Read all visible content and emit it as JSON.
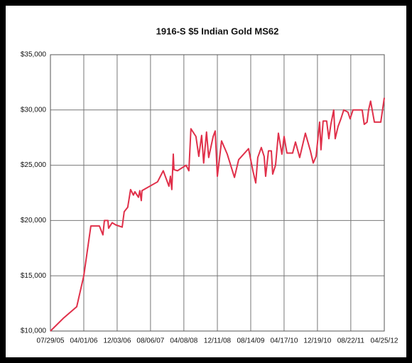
{
  "chart_data": {
    "type": "line",
    "title": "1916-S $5 Indian Gold MS62",
    "x": [
      "2005-07-29",
      "2005-11-05",
      "2006-02-08",
      "2006-04-01",
      "2006-05-23",
      "2006-07-25",
      "2006-08-20",
      "2006-08-31",
      "2006-09-26",
      "2006-10-01",
      "2006-10-27",
      "2006-11-23",
      "2007-01-09",
      "2007-01-24",
      "2007-02-19",
      "2007-03-12",
      "2007-04-02",
      "2007-04-13",
      "2007-05-09",
      "2007-05-19",
      "2007-05-30",
      "2007-06-04",
      "2007-09-27",
      "2007-11-08",
      "2007-12-20",
      "2007-12-31",
      "2008-01-10",
      "2008-01-21",
      "2008-01-26",
      "2008-02-21",
      "2008-04-24",
      "2008-05-15",
      "2008-05-30",
      "2008-07-06",
      "2008-07-27",
      "2008-08-17",
      "2008-09-01",
      "2008-09-22",
      "2008-10-08",
      "2008-11-10",
      "2008-11-25",
      "2008-12-11",
      "2009-01-11",
      "2009-02-22",
      "2009-04-16",
      "2009-05-17",
      "2009-07-29",
      "2009-08-30",
      "2009-09-20",
      "2009-10-05",
      "2009-10-31",
      "2009-11-21",
      "2009-12-02",
      "2009-12-23",
      "2010-01-13",
      "2010-01-23",
      "2010-02-13",
      "2010-03-06",
      "2010-04-01",
      "2010-04-17",
      "2010-05-08",
      "2010-06-19",
      "2010-07-10",
      "2010-08-10",
      "2010-09-21",
      "2010-10-28",
      "2010-11-18",
      "2010-12-09",
      "2011-01-04",
      "2011-01-14",
      "2011-01-30",
      "2011-02-25",
      "2011-03-13",
      "2011-03-28",
      "2011-04-18",
      "2011-04-29",
      "2011-05-20",
      "2011-06-10",
      "2011-07-01",
      "2011-08-01",
      "2011-08-17",
      "2011-09-07",
      "2011-11-14",
      "2011-11-29",
      "2011-12-20",
      "2011-12-31",
      "2012-01-15",
      "2012-02-12",
      "2012-03-30",
      "2012-04-25"
    ],
    "values": [
      10000,
      11200,
      12200,
      15000,
      19500,
      19500,
      18700,
      20000,
      20000,
      19300,
      19800,
      19600,
      19400,
      20800,
      21200,
      22800,
      22300,
      22600,
      22100,
      22700,
      21800,
      22700,
      23500,
      24500,
      23100,
      24000,
      22800,
      26000,
      24600,
      24500,
      25000,
      24500,
      28300,
      27600,
      25800,
      27700,
      25200,
      28000,
      25700,
      27600,
      28100,
      24000,
      27200,
      26000,
      23900,
      25500,
      26500,
      24500,
      23400,
      25700,
      26600,
      25800,
      24000,
      26300,
      26300,
      24200,
      25000,
      27900,
      26000,
      27600,
      26100,
      26100,
      27100,
      25700,
      27900,
      26300,
      25200,
      25800,
      28900,
      26400,
      29000,
      29000,
      27400,
      28700,
      30000,
      27400,
      28500,
      29200,
      30000,
      29800,
      29200,
      30000,
      30000,
      28700,
      28900,
      30000,
      30800,
      28900,
      28900,
      31100
    ],
    "color": "#e0304a",
    "xlim": [
      "2005-07-29",
      "2012-04-25"
    ],
    "xticks": [
      {
        "value": "2005-07-29",
        "label": "07/29/05"
      },
      {
        "value": "2006-04-01",
        "label": "04/01/06"
      },
      {
        "value": "2006-12-03",
        "label": "12/03/06"
      },
      {
        "value": "2007-08-06",
        "label": "08/06/07"
      },
      {
        "value": "2008-04-08",
        "label": "04/08/08"
      },
      {
        "value": "2008-12-11",
        "label": "12/11/08"
      },
      {
        "value": "2009-08-14",
        "label": "08/14/09"
      },
      {
        "value": "2010-04-17",
        "label": "04/17/10"
      },
      {
        "value": "2010-12-19",
        "label": "12/19/10"
      },
      {
        "value": "2011-08-22",
        "label": "08/22/11"
      },
      {
        "value": "2012-04-25",
        "label": "04/25/12"
      }
    ],
    "ylim": [
      10000,
      35000
    ],
    "yticks": [
      {
        "value": 10000,
        "label": "$10,000"
      },
      {
        "value": 15000,
        "label": "$15,000"
      },
      {
        "value": 20000,
        "label": "$20,000"
      },
      {
        "value": 25000,
        "label": "$25,000"
      },
      {
        "value": 30000,
        "label": "$30,000"
      },
      {
        "value": 35000,
        "label": "$35,000"
      }
    ],
    "grid": true
  }
}
